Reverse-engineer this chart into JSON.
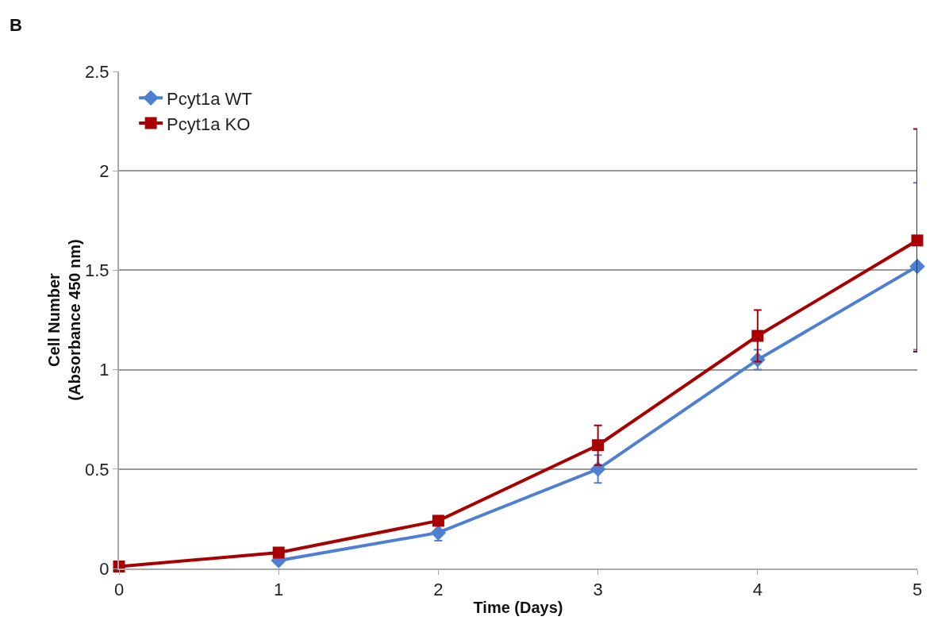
{
  "chart_data": {
    "type": "line",
    "title": "B",
    "xlabel": "Time (Days)",
    "ylabel": "Cell Number\n(Absorbance 450 nm)",
    "x": [
      0,
      1,
      2,
      3,
      4,
      5
    ],
    "series": [
      {
        "name": "Pcyt1a WT",
        "color": "#4f7fd0",
        "marker": "diamond",
        "values": [
          null,
          0.04,
          0.18,
          0.5,
          1.05,
          1.52
        ],
        "errors": [
          null,
          null,
          0.04,
          0.07,
          0.05,
          0.42
        ]
      },
      {
        "name": "Pcyt1a KO",
        "color": "#a80000",
        "marker": "square",
        "values": [
          0.01,
          0.08,
          0.24,
          0.62,
          1.17,
          1.65
        ],
        "errors": [
          null,
          null,
          null,
          0.1,
          0.13,
          0.56
        ]
      }
    ],
    "xlim": [
      0,
      5
    ],
    "xticks": [
      0,
      1,
      2,
      3,
      4,
      5
    ],
    "ylim": [
      0,
      2.5
    ],
    "yticks": [
      0,
      0.5,
      1,
      1.5,
      2,
      2.5
    ],
    "grid": "y",
    "legend": "top left",
    "line_style": "solid"
  }
}
